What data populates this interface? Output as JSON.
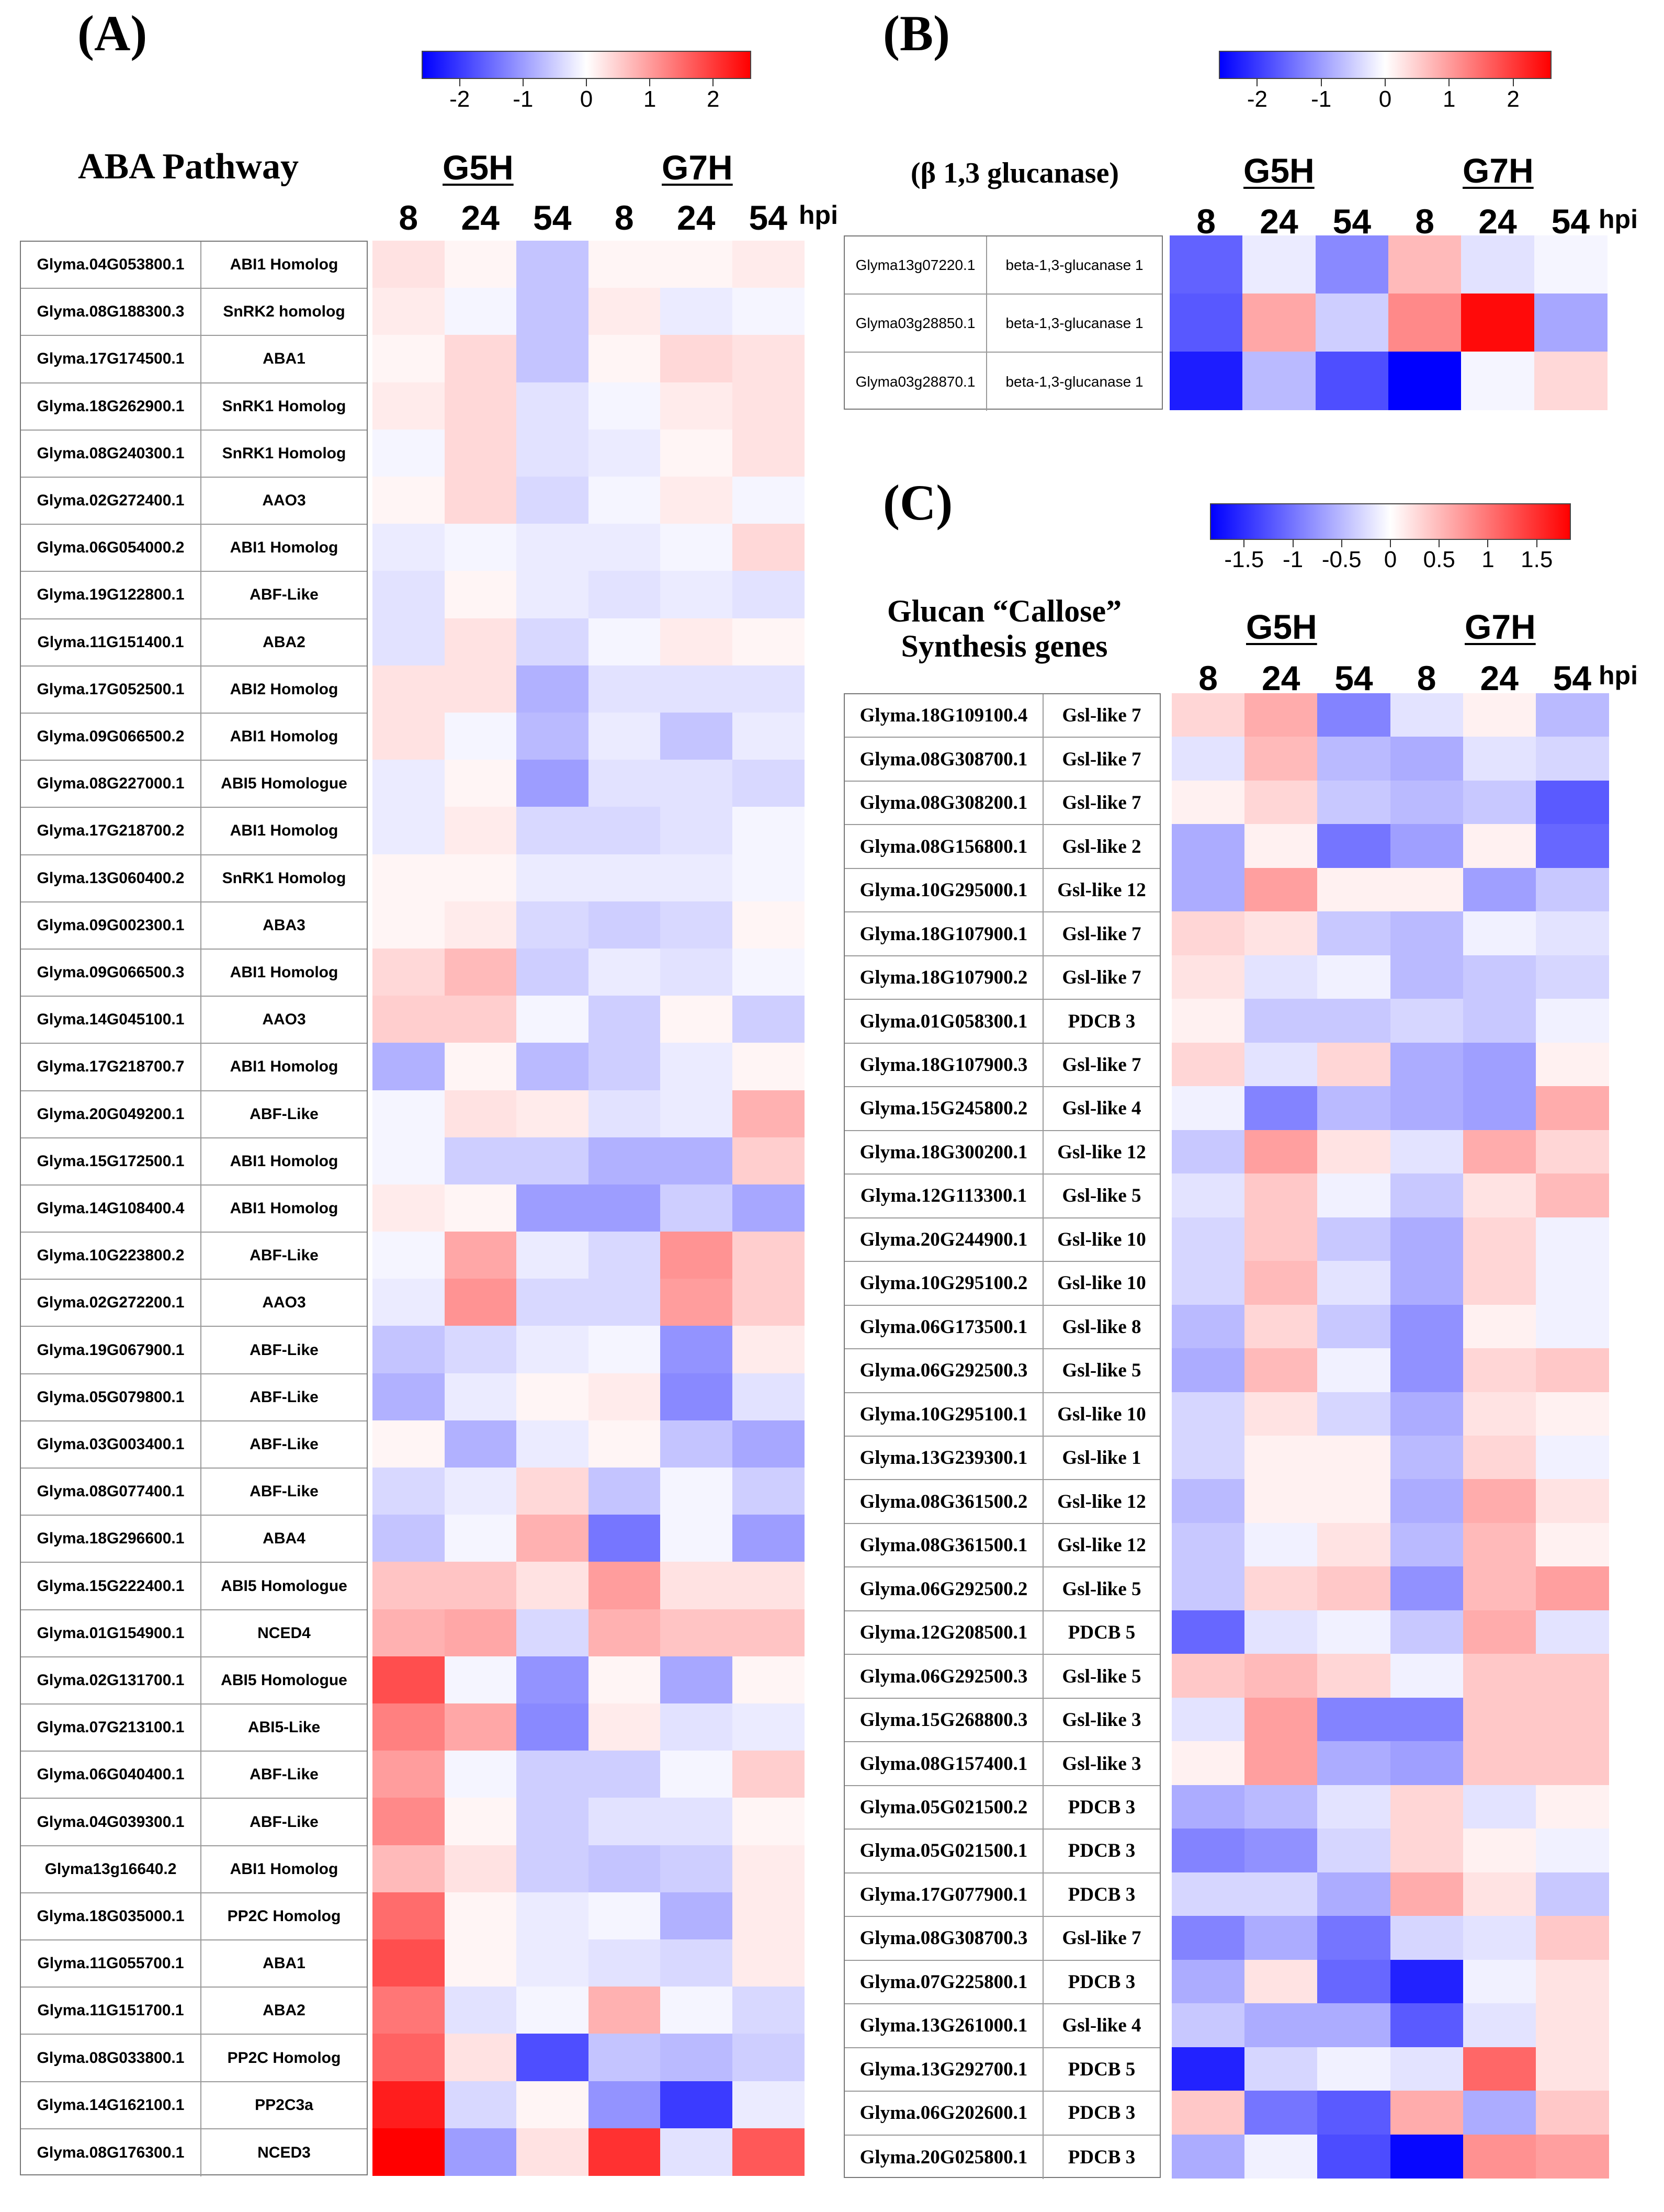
{
  "colors": {
    "low": "#0000ff",
    "mid": "#ffffff",
    "high": "#ff0000"
  },
  "panels": [
    {
      "id": "A",
      "letter": "(A)",
      "title": "ABA Pathway",
      "groups": [
        "G5H",
        "G7H"
      ],
      "timepoints": [
        "8",
        "24",
        "54",
        "8",
        "24",
        "54"
      ],
      "hpi": "hpi",
      "colorbar": {
        "min": -2.6,
        "max": 2.6,
        "ticks": [
          "-2",
          "-1",
          "0",
          "1",
          "2"
        ],
        "tick_values": [
          -2,
          -1,
          0,
          1,
          2
        ]
      },
      "rows": [
        {
          "gene": "Glyma.04G053800.1",
          "name": "ABI1 Homolog",
          "values": [
            0.3,
            0.1,
            -0.6,
            0.1,
            0.1,
            0.2
          ]
        },
        {
          "gene": "Glyma.08G188300.3",
          "name": "SnRK2 homolog",
          "values": [
            0.2,
            -0.1,
            -0.6,
            0.2,
            -0.2,
            -0.1
          ]
        },
        {
          "gene": "Glyma.17G174500.1",
          "name": "ABA1",
          "values": [
            0.1,
            0.4,
            -0.6,
            0.1,
            0.4,
            0.3
          ]
        },
        {
          "gene": "Glyma.18G262900.1",
          "name": "SnRK1 Homolog",
          "values": [
            0.2,
            0.4,
            -0.3,
            -0.1,
            0.2,
            0.3
          ]
        },
        {
          "gene": "Glyma.08G240300.1",
          "name": "SnRK1 Homolog",
          "values": [
            -0.1,
            0.4,
            -0.3,
            -0.2,
            0.1,
            0.3
          ]
        },
        {
          "gene": "Glyma.02G272400.1",
          "name": "AAO3",
          "values": [
            0.1,
            0.4,
            -0.4,
            -0.1,
            0.2,
            -0.1
          ]
        },
        {
          "gene": "Glyma.06G054000.2",
          "name": "ABI1 Homolog",
          "values": [
            -0.2,
            -0.1,
            -0.2,
            -0.2,
            -0.1,
            0.4
          ]
        },
        {
          "gene": "Glyma.19G122800.1",
          "name": "ABF-Like",
          "values": [
            -0.3,
            0.1,
            -0.2,
            -0.3,
            -0.2,
            -0.3
          ]
        },
        {
          "gene": "Glyma.11G151400.1",
          "name": "ABA2",
          "values": [
            -0.3,
            0.3,
            -0.4,
            -0.1,
            0.2,
            0.1
          ]
        },
        {
          "gene": "Glyma.17G052500.1",
          "name": "ABI2 Homolog",
          "values": [
            0.3,
            0.3,
            -0.8,
            -0.3,
            -0.3,
            -0.3
          ]
        },
        {
          "gene": "Glyma.09G066500.2",
          "name": "ABI1 Homolog",
          "values": [
            0.3,
            -0.1,
            -0.7,
            -0.2,
            -0.6,
            -0.2
          ]
        },
        {
          "gene": "Glyma.08G227000.1",
          "name": "ABI5 Homologue",
          "values": [
            -0.2,
            0.1,
            -1.0,
            -0.3,
            -0.3,
            -0.4
          ]
        },
        {
          "gene": "Glyma.17G218700.2",
          "name": "ABI1 Homolog",
          "values": [
            -0.2,
            0.2,
            -0.4,
            -0.4,
            -0.3,
            -0.1
          ]
        },
        {
          "gene": "Glyma.13G060400.2",
          "name": "SnRK1 Homolog",
          "values": [
            0.1,
            0.1,
            -0.2,
            -0.2,
            -0.2,
            -0.1
          ]
        },
        {
          "gene": "Glyma.09G002300.1",
          "name": "ABA3",
          "values": [
            0.1,
            0.2,
            -0.4,
            -0.5,
            -0.4,
            0.1
          ]
        },
        {
          "gene": "Glyma.09G066500.3",
          "name": "ABI1 Homolog",
          "values": [
            0.4,
            0.7,
            -0.5,
            -0.2,
            -0.3,
            -0.1
          ]
        },
        {
          "gene": "Glyma.14G045100.1",
          "name": "AAO3",
          "values": [
            0.5,
            0.5,
            -0.1,
            -0.5,
            0.1,
            -0.5
          ]
        },
        {
          "gene": "Glyma.17G218700.7",
          "name": "ABI1 Homolog",
          "values": [
            -0.8,
            0.1,
            -0.7,
            -0.5,
            -0.2,
            0.1
          ]
        },
        {
          "gene": "Glyma.20G049200.1",
          "name": "ABF-Like",
          "values": [
            -0.1,
            0.3,
            0.2,
            -0.3,
            -0.2,
            0.8
          ]
        },
        {
          "gene": "Glyma.15G172500.1",
          "name": "ABI1 Homolog",
          "values": [
            -0.1,
            -0.5,
            -0.5,
            -0.8,
            -0.8,
            0.5
          ]
        },
        {
          "gene": "Glyma.14G108400.4",
          "name": "ABI1 Homolog",
          "values": [
            0.2,
            0.1,
            -1.0,
            -1.0,
            -0.5,
            -0.9
          ]
        },
        {
          "gene": "Glyma.10G223800.2",
          "name": "ABF-Like",
          "values": [
            -0.1,
            0.9,
            -0.2,
            -0.4,
            1.1,
            0.5
          ]
        },
        {
          "gene": "Glyma.02G272200.1",
          "name": "AAO3",
          "values": [
            -0.2,
            1.1,
            -0.4,
            -0.4,
            1.0,
            0.5
          ]
        },
        {
          "gene": "Glyma.19G067900.1",
          "name": "ABF-Like",
          "values": [
            -0.6,
            -0.4,
            -0.2,
            -0.1,
            -1.1,
            0.2
          ]
        },
        {
          "gene": "Glyma.05G079800.1",
          "name": "ABF-Like",
          "values": [
            -0.8,
            -0.2,
            0.1,
            0.2,
            -1.2,
            -0.3
          ]
        },
        {
          "gene": "Glyma.03G003400.1",
          "name": "ABF-Like",
          "values": [
            0.1,
            -0.8,
            -0.2,
            0.1,
            -0.6,
            -0.9
          ]
        },
        {
          "gene": "Glyma.08G077400.1",
          "name": "ABF-Like",
          "values": [
            -0.4,
            -0.2,
            0.4,
            -0.6,
            -0.1,
            -0.5
          ]
        },
        {
          "gene": "Glyma.18G296600.1",
          "name": "ABA4",
          "values": [
            -0.6,
            -0.1,
            0.8,
            -1.4,
            -0.1,
            -1.0
          ]
        },
        {
          "gene": "Glyma.15G222400.1",
          "name": "ABI5 Homologue",
          "values": [
            0.6,
            0.6,
            0.3,
            1.0,
            0.3,
            0.3
          ]
        },
        {
          "gene": "Glyma.01G154900.1",
          "name": "NCED4",
          "values": [
            0.8,
            0.9,
            -0.4,
            0.8,
            0.6,
            0.6
          ]
        },
        {
          "gene": "Glyma.02G131700.1",
          "name": "ABI5 Homologue",
          "values": [
            1.8,
            -0.1,
            -1.1,
            0.1,
            -0.9,
            0.1
          ]
        },
        {
          "gene": "Glyma.07G213100.1",
          "name": "ABI5-Like",
          "values": [
            1.3,
            0.9,
            -1.2,
            0.2,
            -0.3,
            -0.2
          ]
        },
        {
          "gene": "Glyma.06G040400.1",
          "name": "ABF-Like",
          "values": [
            1.0,
            -0.1,
            -0.5,
            -0.5,
            -0.1,
            0.5
          ]
        },
        {
          "gene": "Glyma.04G039300.1",
          "name": "ABF-Like",
          "values": [
            1.2,
            0.1,
            -0.5,
            -0.3,
            -0.3,
            0.1
          ]
        },
        {
          "gene": "Glyma13g16640.2",
          "name": "ABI1 Homolog",
          "values": [
            0.7,
            0.3,
            -0.5,
            -0.6,
            -0.5,
            0.2
          ]
        },
        {
          "gene": "Glyma.18G035000.1",
          "name": "PP2C Homolog",
          "values": [
            1.5,
            0.1,
            -0.2,
            -0.1,
            -0.8,
            0.2
          ]
        },
        {
          "gene": "Glyma.11G055700.1",
          "name": "ABA1",
          "values": [
            1.8,
            0.1,
            -0.2,
            -0.3,
            -0.4,
            0.2
          ]
        },
        {
          "gene": "Glyma.11G151700.1",
          "name": "ABA2",
          "values": [
            1.4,
            -0.3,
            -0.1,
            0.8,
            -0.1,
            -0.4
          ]
        },
        {
          "gene": "Glyma.08G033800.1",
          "name": "PP2C Homolog",
          "values": [
            1.6,
            0.3,
            -1.8,
            -0.6,
            -0.7,
            -0.5
          ]
        },
        {
          "gene": "Glyma.14G162100.1",
          "name": "PP2C3a",
          "values": [
            2.3,
            -0.4,
            0.1,
            -1.1,
            -2.0,
            -0.2
          ]
        },
        {
          "gene": "Glyma.08G176300.1",
          "name": "NCED3",
          "values": [
            2.6,
            -1.0,
            0.3,
            2.1,
            -0.3,
            1.7
          ]
        }
      ]
    },
    {
      "id": "B",
      "letter": "(B)",
      "title": "(β 1,3 glucanase)",
      "groups": [
        "G5H",
        "G7H"
      ],
      "timepoints": [
        "8",
        "24",
        "54",
        "8",
        "24",
        "54"
      ],
      "hpi": "hpi",
      "colorbar": {
        "min": -2.6,
        "max": 2.6,
        "ticks": [
          "-2",
          "-1",
          "0",
          "1",
          "2"
        ],
        "tick_values": [
          -2,
          -1,
          0,
          1,
          2
        ]
      },
      "rows": [
        {
          "gene": "Glyma13g07220.1",
          "name": "beta-1,3-glucanase 1",
          "values": [
            -1.6,
            -0.2,
            -1.2,
            0.7,
            -0.3,
            -0.1
          ]
        },
        {
          "gene": "Glyma03g28850.1",
          "name": "beta-1,3-glucanase 1",
          "values": [
            -1.7,
            0.9,
            -0.5,
            1.2,
            2.5,
            -0.9
          ]
        },
        {
          "gene": "Glyma03g28870.1",
          "name": "beta-1,3-glucanase 1",
          "values": [
            -2.3,
            -0.7,
            -1.8,
            -2.6,
            -0.1,
            0.4
          ]
        }
      ]
    },
    {
      "id": "C",
      "letter": "(C)",
      "title": "Glucan “Callose” Synthesis genes",
      "groups": [
        "G5H",
        "G7H"
      ],
      "timepoints": [
        "8",
        "24",
        "54",
        "8",
        "24",
        "54"
      ],
      "hpi": "hpi",
      "colorbar": {
        "min": -1.85,
        "max": 1.85,
        "ticks": [
          "-1.5",
          "-1",
          "-0.5",
          "0",
          "0.5",
          "1",
          "1.5"
        ],
        "tick_values": [
          -1.5,
          -1,
          -0.5,
          0,
          0.5,
          1,
          1.5
        ]
      },
      "rows": [
        {
          "gene": "Glyma.18G109100.4",
          "name": "Gsl-like 7",
          "values": [
            0.3,
            0.6,
            -0.9,
            -0.2,
            0.1,
            -0.5
          ]
        },
        {
          "gene": "Glyma.08G308700.1",
          "name": "Gsl-like 7",
          "values": [
            -0.2,
            0.5,
            -0.5,
            -0.6,
            -0.2,
            -0.3
          ]
        },
        {
          "gene": "Glyma.08G308200.1",
          "name": "Gsl-like 7",
          "values": [
            0.1,
            0.3,
            -0.4,
            -0.5,
            -0.4,
            -1.2
          ]
        },
        {
          "gene": "Glyma.08G156800.1",
          "name": "Gsl-like 2",
          "values": [
            -0.6,
            0.1,
            -1.0,
            -0.7,
            0.1,
            -1.1
          ]
        },
        {
          "gene": "Glyma.10G295000.1",
          "name": "Gsl-like 12",
          "values": [
            -0.6,
            0.7,
            0.1,
            0.1,
            -0.7,
            -0.4
          ]
        },
        {
          "gene": "Glyma.18G107900.1",
          "name": "Gsl-like 7",
          "values": [
            0.3,
            0.2,
            -0.4,
            -0.5,
            -0.1,
            -0.2
          ]
        },
        {
          "gene": "Glyma.18G107900.2",
          "name": "Gsl-like 7",
          "values": [
            0.2,
            -0.2,
            -0.1,
            -0.5,
            -0.4,
            -0.3
          ]
        },
        {
          "gene": "Glyma.01G058300.1",
          "name": "PDCB 3",
          "values": [
            0.1,
            -0.4,
            -0.4,
            -0.3,
            -0.4,
            -0.1
          ]
        },
        {
          "gene": "Glyma.18G107900.3",
          "name": "Gsl-like 7",
          "values": [
            0.3,
            -0.2,
            0.3,
            -0.6,
            -0.7,
            0.1
          ]
        },
        {
          "gene": "Glyma.15G245800.2",
          "name": "Gsl-like 4",
          "values": [
            -0.1,
            -0.9,
            -0.5,
            -0.6,
            -0.7,
            0.6
          ]
        },
        {
          "gene": "Glyma.18G300200.1",
          "name": "Gsl-like 12",
          "values": [
            -0.4,
            0.7,
            0.2,
            -0.2,
            0.6,
            0.3
          ]
        },
        {
          "gene": "Glyma.12G113300.1",
          "name": "Gsl-like 5",
          "values": [
            -0.2,
            0.4,
            -0.1,
            -0.4,
            0.2,
            0.5
          ]
        },
        {
          "gene": "Glyma.20G244900.1",
          "name": "Gsl-like 10",
          "values": [
            -0.3,
            0.4,
            -0.4,
            -0.6,
            0.3,
            -0.1
          ]
        },
        {
          "gene": "Glyma.10G295100.2",
          "name": "Gsl-like 10",
          "values": [
            -0.3,
            0.5,
            -0.2,
            -0.6,
            0.3,
            -0.1
          ]
        },
        {
          "gene": "Glyma.06G173500.1",
          "name": "Gsl-like 8",
          "values": [
            -0.5,
            0.3,
            -0.4,
            -0.8,
            0.1,
            -0.1
          ]
        },
        {
          "gene": "Glyma.06G292500.3",
          "name": "Gsl-like 5",
          "values": [
            -0.6,
            0.5,
            -0.1,
            -0.8,
            0.3,
            0.4
          ]
        },
        {
          "gene": "Glyma.10G295100.1",
          "name": "Gsl-like 10",
          "values": [
            -0.3,
            0.2,
            -0.3,
            -0.6,
            0.2,
            0.1
          ]
        },
        {
          "gene": "Glyma.13G239300.1",
          "name": "Gsl-like 1",
          "values": [
            -0.3,
            0.1,
            0.1,
            -0.5,
            0.3,
            -0.1
          ]
        },
        {
          "gene": "Glyma.08G361500.2",
          "name": "Gsl-like 12",
          "values": [
            -0.5,
            0.1,
            0.1,
            -0.6,
            0.6,
            0.2
          ]
        },
        {
          "gene": "Glyma.08G361500.1",
          "name": "Gsl-like 12",
          "values": [
            -0.4,
            -0.1,
            0.2,
            -0.5,
            0.5,
            0.1
          ]
        },
        {
          "gene": "Glyma.06G292500.2",
          "name": "Gsl-like 5",
          "values": [
            -0.4,
            0.3,
            0.4,
            -0.8,
            0.5,
            0.7
          ]
        },
        {
          "gene": "Glyma.12G208500.1",
          "name": "PDCB 5",
          "values": [
            -1.1,
            -0.2,
            -0.1,
            -0.4,
            0.6,
            -0.2
          ]
        },
        {
          "gene": "Glyma.06G292500.3",
          "name": "Gsl-like 5",
          "values": [
            0.4,
            0.5,
            0.3,
            -0.1,
            0.4,
            0.4
          ]
        },
        {
          "gene": "Glyma.15G268800.3",
          "name": "Gsl-like 3",
          "values": [
            -0.2,
            0.7,
            -0.9,
            -0.9,
            0.4,
            0.4
          ]
        },
        {
          "gene": "Glyma.08G157400.1",
          "name": "Gsl-like 3",
          "values": [
            0.1,
            0.7,
            -0.6,
            -0.7,
            0.4,
            0.4
          ]
        },
        {
          "gene": "Glyma.05G021500.2",
          "name": "PDCB 3",
          "values": [
            -0.6,
            -0.5,
            -0.2,
            0.3,
            -0.2,
            0.1
          ]
        },
        {
          "gene": "Glyma.05G021500.1",
          "name": "PDCB 3",
          "values": [
            -0.9,
            -0.8,
            -0.3,
            0.3,
            0.1,
            -0.1
          ]
        },
        {
          "gene": "Glyma.17G077900.1",
          "name": "PDCB 3",
          "values": [
            -0.3,
            -0.3,
            -0.6,
            0.6,
            0.2,
            -0.4
          ]
        },
        {
          "gene": "Glyma.08G308700.3",
          "name": "Gsl-like 7",
          "values": [
            -0.9,
            -0.6,
            -1.0,
            -0.3,
            -0.2,
            0.4
          ]
        },
        {
          "gene": "Glyma.07G225800.1",
          "name": "PDCB 3",
          "values": [
            -0.6,
            0.2,
            -1.1,
            -1.6,
            -0.1,
            0.2
          ]
        },
        {
          "gene": "Glyma.13G261000.1",
          "name": "Gsl-like 4",
          "values": [
            -0.4,
            -0.6,
            -0.6,
            -1.2,
            -0.2,
            0.2
          ]
        },
        {
          "gene": "Glyma.13G292700.1",
          "name": "PDCB 5",
          "values": [
            -1.6,
            -0.3,
            -0.1,
            -0.2,
            1.1,
            0.2
          ]
        },
        {
          "gene": "Glyma.06G202600.1",
          "name": "PDCB 3",
          "values": [
            0.4,
            -1.0,
            -1.2,
            0.6,
            -0.6,
            0.4
          ]
        },
        {
          "gene": "Glyma.20G025800.1",
          "name": "PDCB 3",
          "values": [
            -0.6,
            -0.1,
            -1.3,
            -1.8,
            0.8,
            0.7
          ]
        }
      ]
    }
  ]
}
